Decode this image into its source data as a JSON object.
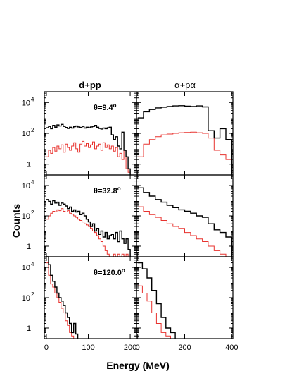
{
  "chart_data": {
    "type": "histogram-grid",
    "xlabel": "Energy (MeV)",
    "ylabel": "Counts",
    "yscale": "log",
    "ylim": [
      0.2,
      50000
    ],
    "y_ticks": [
      {
        "value": 1,
        "label": "1"
      },
      {
        "value": 100,
        "label": "10",
        "sup": "2"
      },
      {
        "value": 10000,
        "label": "10",
        "sup": "4"
      }
    ],
    "colors": {
      "series1": "#000000",
      "series2": "#e8322e",
      "axis": "#000000"
    },
    "columns": [
      {
        "title": "d+pp",
        "xlim": [
          -5,
          215
        ],
        "x_ticks": [
          0,
          100,
          200
        ]
      },
      {
        "title": "α+pα",
        "xlim": [
          -5,
          405
        ],
        "x_ticks": [
          0,
          200,
          400
        ]
      }
    ],
    "rows": [
      {
        "angle_label": "θ=9.4",
        "angle_sup": "o",
        "panels": [
          {
            "bin_width": 5,
            "black": [
              230,
              280,
              200,
              330,
              250,
              350,
              300,
              380,
              280,
              240,
              210,
              250,
              220,
              270,
              300,
              260,
              240,
              280,
              220,
              250,
              230,
              260,
              280,
              330,
              250,
              210,
              190,
              220,
              200,
              230,
              250,
              80,
              40,
              60,
              15,
              10,
              120,
              8,
              3,
              0.5
            ],
            "red": [
              3,
              8,
              5,
              12,
              7,
              15,
              10,
              18,
              6,
              20,
              12,
              8,
              15,
              25,
              10,
              6,
              20,
              30,
              15,
              22,
              12,
              18,
              28,
              10,
              15,
              20,
              8,
              25,
              12,
              18,
              10,
              15,
              7,
              12,
              3,
              5,
              2,
              8,
              0.5,
              0.3
            ]
          },
          {
            "bin_width": 25,
            "black": [
              1000,
              2500,
              3500,
              4500,
              5000,
              5500,
              6000,
              6200,
              5800,
              5500,
              6000,
              5200,
              150,
              50,
              200,
              40
            ],
            "red": [
              3,
              20,
              40,
              60,
              80,
              90,
              100,
              110,
              115,
              120,
              110,
              100,
              50,
              8,
              4,
              2
            ]
          }
        ]
      },
      {
        "angle_label": "θ=32.8",
        "angle_sup": "o",
        "panels": [
          {
            "bin_width": 5,
            "black": [
              1200,
              900,
              600,
              1000,
              700,
              800,
              500,
              700,
              600,
              450,
              300,
              380,
              200,
              250,
              180,
              200,
              120,
              150,
              100,
              60,
              40,
              20,
              30,
              10,
              15,
              6,
              10,
              4,
              8,
              3,
              5,
              6,
              3,
              8,
              2,
              10,
              3,
              1.5,
              3,
              0.6
            ],
            "red": [
              60,
              100,
              150,
              200,
              180,
              250,
              220,
              300,
              200,
              180,
              220,
              150,
              130,
              100,
              80,
              60,
              50,
              40,
              30,
              25,
              20,
              15,
              10,
              8,
              5,
              3,
              2,
              1,
              0.5,
              0.3,
              0.2,
              0.2,
              0.3,
              0.2,
              0.3,
              0.2,
              0.3,
              0.2,
              0.3,
              0.2
            ]
          },
          {
            "bin_width": 25,
            "black": [
              7000,
              3500,
              2000,
              1200,
              800,
              500,
              350,
              250,
              200,
              150,
              100,
              80,
              30,
              12,
              8,
              4
            ],
            "red": [
              400,
              200,
              120,
              80,
              50,
              30,
              20,
              15,
              8,
              5,
              3,
              2,
              1,
              0.5,
              0.3,
              0.2
            ]
          }
        ]
      },
      {
        "angle_label": "θ=120.0",
        "angle_sup": "o",
        "panels": [
          {
            "bin_width": 5,
            "black": [
              50000,
              15000,
              3000,
              1200,
              500,
              200,
              100,
              60,
              30,
              10,
              5,
              2,
              0.5,
              2,
              0.4
            ],
            "red": [
              20000,
              3000,
              800,
              500,
              200,
              100,
              50,
              20,
              10,
              3,
              1.5,
              0.5,
              0.3,
              0.2,
              0.2
            ]
          },
          {
            "bin_width": 20,
            "black": [
              20000,
              8000,
              2000,
              300,
              40,
              5,
              1,
              0.5
            ],
            "red": [
              600,
              200,
              60,
              10,
              2,
              0.5,
              0.3,
              0.2
            ]
          }
        ]
      }
    ]
  }
}
